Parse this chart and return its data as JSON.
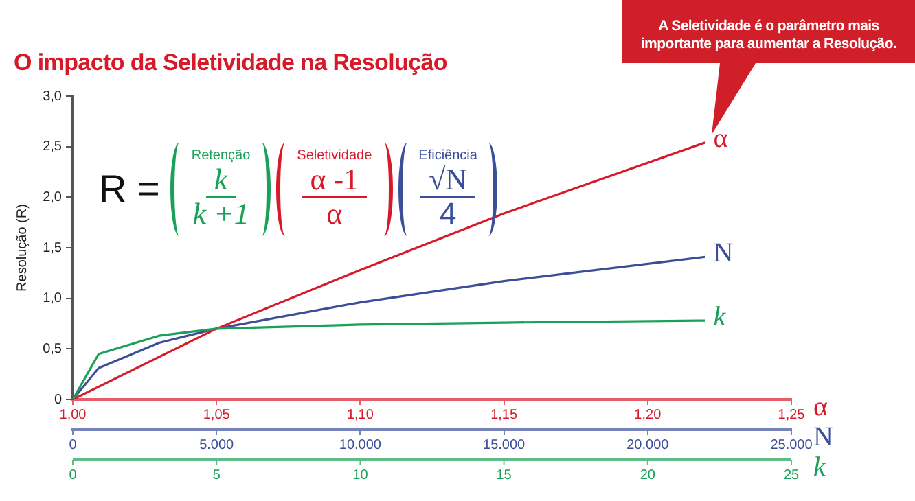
{
  "chart_data": [
    {
      "type": "line",
      "title": "O impacto da Seletividade na Resolução",
      "ylabel": "Resolução (R)",
      "xlabel": "α",
      "x2label": "N",
      "annotations": [
        "A Seletividade é o parâmetro mais importante para aumentar a Resolução.",
        "R =",
        "Retenção",
        "k",
        "k +1",
        "Seletividade",
        "α -1",
        "α",
        "Eficiência",
        "√N",
        "4"
      ],
      "series": [
        {
          "name": "α",
          "color": "#d7192a",
          "x": [
            1.0,
            1.05,
            1.1,
            1.15,
            1.22
          ],
          "values": [
            0,
            0.7,
            1.28,
            1.84,
            2.54
          ]
        },
        {
          "name": "N",
          "color": "#3a4e9a",
          "axis": "x2",
          "x": [
            0,
            900,
            3000,
            5000,
            10000,
            15000,
            22000
          ],
          "values": [
            0,
            0.31,
            0.56,
            0.7,
            0.96,
            1.17,
            1.41
          ]
        }
      ],
      "xlim": [
        1.0,
        1.25
      ],
      "xticks": [
        {
          "value": 1.0,
          "label": "1,00"
        },
        {
          "value": 1.05,
          "label": "1,05"
        },
        {
          "value": 1.1,
          "label": "1,10"
        },
        {
          "value": 1.15,
          "label": "1,15"
        },
        {
          "value": 1.2,
          "label": "1,20"
        },
        {
          "value": 1.25,
          "label": "1,25"
        }
      ],
      "x2lim": [
        0,
        25000
      ],
      "x2ticks": [
        0,
        {
          "value": 5000,
          "label": "5.000"
        },
        {
          "value": 10000,
          "label": "10.000"
        },
        {
          "value": 15000,
          "label": "15.000"
        },
        {
          "value": 20000,
          "label": "20.000"
        },
        {
          "value": 25000,
          "label": "25.000"
        }
      ],
      "ylim": [
        0,
        3.0
      ],
      "yticks": [
        0,
        {
          "value": 0.5,
          "label": "0,5"
        },
        {
          "value": 1.0,
          "label": "1,0"
        },
        {
          "value": 1.5,
          "label": "1,5"
        },
        {
          "value": 2.0,
          "label": "2,0"
        },
        {
          "value": 2.5,
          "label": "2,5"
        },
        {
          "value": 3.0,
          "label": "3,0"
        }
      ],
      "marker": "none",
      "line_style": "solid"
    },
    {
      "type": "line",
      "xlabel": "k",
      "series": [
        {
          "name": "k",
          "color": "#1aa058",
          "x": [
            0,
            0.9,
            3,
            5,
            10,
            15,
            22
          ],
          "values": [
            0,
            0.45,
            0.63,
            0.7,
            0.74,
            0.76,
            0.78
          ]
        }
      ],
      "xlim": [
        0,
        25
      ],
      "xticks": [
        0,
        5,
        10,
        15,
        20,
        25
      ],
      "ylim": [
        0,
        3.0
      ],
      "tick_labels": "x",
      "marker": "none",
      "line_style": "solid"
    }
  ]
}
